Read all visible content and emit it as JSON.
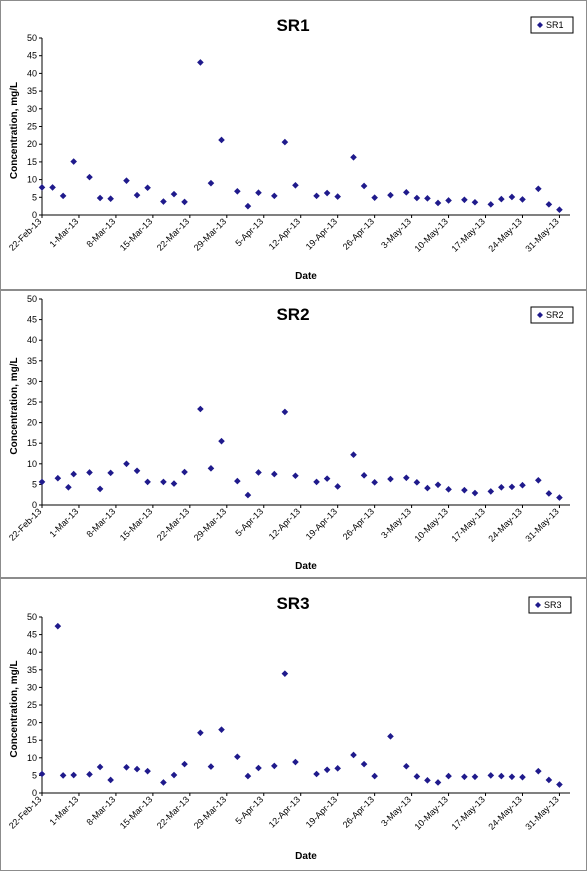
{
  "chart_data": [
    {
      "type": "scatter",
      "title": "SR1",
      "xlabel": "Date",
      "ylabel": "Concentration, mg/L",
      "ylim": [
        0,
        50
      ],
      "yticks": [
        0,
        5,
        10,
        15,
        20,
        25,
        30,
        35,
        40,
        45,
        50
      ],
      "xlim": [
        "2013-02-22",
        "2013-06-02"
      ],
      "xticks": [
        "22-Feb-13",
        "1-Mar-13",
        "8-Mar-13",
        "15-Mar-13",
        "22-Mar-13",
        "29-Mar-13",
        "5-Apr-13",
        "12-Apr-13",
        "19-Apr-13",
        "26-Apr-13",
        "3-May-13",
        "10-May-13",
        "17-May-13",
        "24-May-13",
        "31-May-13"
      ],
      "grid": false,
      "legend_position": "top-right",
      "marker": "diamond",
      "color": "#1f1a8c",
      "series": [
        {
          "name": "SR1",
          "x": [
            "2013-02-22",
            "2013-02-24",
            "2013-02-26",
            "2013-02-28",
            "2013-03-03",
            "2013-03-05",
            "2013-03-07",
            "2013-03-10",
            "2013-03-12",
            "2013-03-14",
            "2013-03-17",
            "2013-03-19",
            "2013-03-21",
            "2013-03-24",
            "2013-03-26",
            "2013-03-28",
            "2013-03-31",
            "2013-04-02",
            "2013-04-04",
            "2013-04-07",
            "2013-04-09",
            "2013-04-11",
            "2013-04-15",
            "2013-04-17",
            "2013-04-19",
            "2013-04-22",
            "2013-04-24",
            "2013-04-26",
            "2013-04-29",
            "2013-05-02",
            "2013-05-04",
            "2013-05-06",
            "2013-05-08",
            "2013-05-10",
            "2013-05-13",
            "2013-05-15",
            "2013-05-18",
            "2013-05-20",
            "2013-05-22",
            "2013-05-24",
            "2013-05-27",
            "2013-05-29",
            "2013-05-31"
          ],
          "y": [
            7.8,
            7.8,
            5.4,
            15.1,
            10.7,
            4.8,
            4.6,
            9.7,
            5.6,
            7.7,
            3.8,
            5.9,
            3.7,
            43.1,
            9.0,
            21.2,
            6.7,
            2.5,
            6.3,
            5.4,
            20.6,
            8.4,
            5.4,
            6.2,
            5.2,
            16.3,
            8.2,
            4.9,
            5.6,
            6.4,
            4.8,
            4.7,
            3.4,
            4.1,
            4.3,
            3.6,
            3.0,
            4.5,
            5.1,
            4.4,
            7.4,
            3.0,
            1.5
          ]
        }
      ]
    },
    {
      "type": "scatter",
      "title": "SR2",
      "xlabel": "Date",
      "ylabel": "Concentration, mg/L",
      "ylim": [
        0,
        50
      ],
      "yticks": [
        0,
        5,
        10,
        15,
        20,
        25,
        30,
        35,
        40,
        45,
        50
      ],
      "xlim": [
        "2013-02-22",
        "2013-06-02"
      ],
      "xticks": [
        "22-Feb-13",
        "1-Mar-13",
        "8-Mar-13",
        "15-Mar-13",
        "22-Mar-13",
        "29-Mar-13",
        "5-Apr-13",
        "12-Apr-13",
        "19-Apr-13",
        "26-Apr-13",
        "3-May-13",
        "10-May-13",
        "17-May-13",
        "24-May-13",
        "31-May-13"
      ],
      "grid": false,
      "legend_position": "top-right",
      "marker": "diamond",
      "color": "#1f1a8c",
      "series": [
        {
          "name": "SR2",
          "x": [
            "2013-02-22",
            "2013-02-25",
            "2013-02-27",
            "2013-02-28",
            "2013-03-03",
            "2013-03-05",
            "2013-03-07",
            "2013-03-10",
            "2013-03-12",
            "2013-03-14",
            "2013-03-17",
            "2013-03-19",
            "2013-03-21",
            "2013-03-24",
            "2013-03-26",
            "2013-03-28",
            "2013-03-31",
            "2013-04-02",
            "2013-04-04",
            "2013-04-07",
            "2013-04-09",
            "2013-04-11",
            "2013-04-15",
            "2013-04-17",
            "2013-04-19",
            "2013-04-22",
            "2013-04-24",
            "2013-04-26",
            "2013-04-29",
            "2013-05-02",
            "2013-05-04",
            "2013-05-06",
            "2013-05-08",
            "2013-05-10",
            "2013-05-13",
            "2013-05-15",
            "2013-05-18",
            "2013-05-20",
            "2013-05-22",
            "2013-05-24",
            "2013-05-27",
            "2013-05-29",
            "2013-05-31"
          ],
          "y": [
            5.6,
            6.5,
            4.3,
            7.5,
            7.9,
            3.9,
            7.8,
            10.0,
            8.3,
            5.6,
            5.6,
            5.2,
            8.0,
            23.3,
            8.9,
            15.5,
            5.8,
            2.4,
            7.9,
            7.5,
            22.6,
            7.1,
            5.6,
            6.4,
            4.5,
            12.2,
            7.2,
            5.5,
            6.3,
            6.6,
            5.5,
            4.1,
            4.9,
            3.8,
            3.6,
            2.9,
            3.3,
            4.3,
            4.4,
            4.8,
            6.0,
            2.8,
            1.8
          ]
        }
      ]
    },
    {
      "type": "scatter",
      "title": "SR3",
      "xlabel": "Date",
      "ylabel": "Concentration, mg/L",
      "ylim": [
        0,
        50
      ],
      "yticks": [
        0,
        5,
        10,
        15,
        20,
        25,
        30,
        35,
        40,
        45,
        50
      ],
      "xlim": [
        "2013-02-22",
        "2013-06-02"
      ],
      "xticks": [
        "22-Feb-13",
        "1-Mar-13",
        "8-Mar-13",
        "15-Mar-13",
        "22-Mar-13",
        "29-Mar-13",
        "5-Apr-13",
        "12-Apr-13",
        "19-Apr-13",
        "26-Apr-13",
        "3-May-13",
        "10-May-13",
        "17-May-13",
        "24-May-13",
        "31-May-13"
      ],
      "grid": false,
      "legend_position": "top-right",
      "marker": "diamond",
      "color": "#1f1a8c",
      "series": [
        {
          "name": "SR3",
          "x": [
            "2013-02-22",
            "2013-02-25",
            "2013-02-26",
            "2013-02-28",
            "2013-03-03",
            "2013-03-05",
            "2013-03-07",
            "2013-03-10",
            "2013-03-12",
            "2013-03-14",
            "2013-03-17",
            "2013-03-19",
            "2013-03-21",
            "2013-03-24",
            "2013-03-26",
            "2013-03-28",
            "2013-03-31",
            "2013-04-02",
            "2013-04-04",
            "2013-04-07",
            "2013-04-09",
            "2013-04-11",
            "2013-04-15",
            "2013-04-17",
            "2013-04-19",
            "2013-04-22",
            "2013-04-24",
            "2013-04-26",
            "2013-04-29",
            "2013-05-02",
            "2013-05-04",
            "2013-05-06",
            "2013-05-08",
            "2013-05-10",
            "2013-05-13",
            "2013-05-15",
            "2013-05-18",
            "2013-05-20",
            "2013-05-22",
            "2013-05-24",
            "2013-05-27",
            "2013-05-29",
            "2013-05-31"
          ],
          "y": [
            5.4,
            47.4,
            5.0,
            5.1,
            5.3,
            7.4,
            3.7,
            7.3,
            6.8,
            6.2,
            3.0,
            5.1,
            8.2,
            17.1,
            7.5,
            18.0,
            10.3,
            4.8,
            7.1,
            7.7,
            33.9,
            8.8,
            5.4,
            6.6,
            7.0,
            10.8,
            8.2,
            4.8,
            16.1,
            7.6,
            4.7,
            3.6,
            3.0,
            4.8,
            4.6,
            4.6,
            5.0,
            4.8,
            4.6,
            4.5,
            6.2,
            3.7,
            2.4
          ]
        }
      ]
    }
  ]
}
